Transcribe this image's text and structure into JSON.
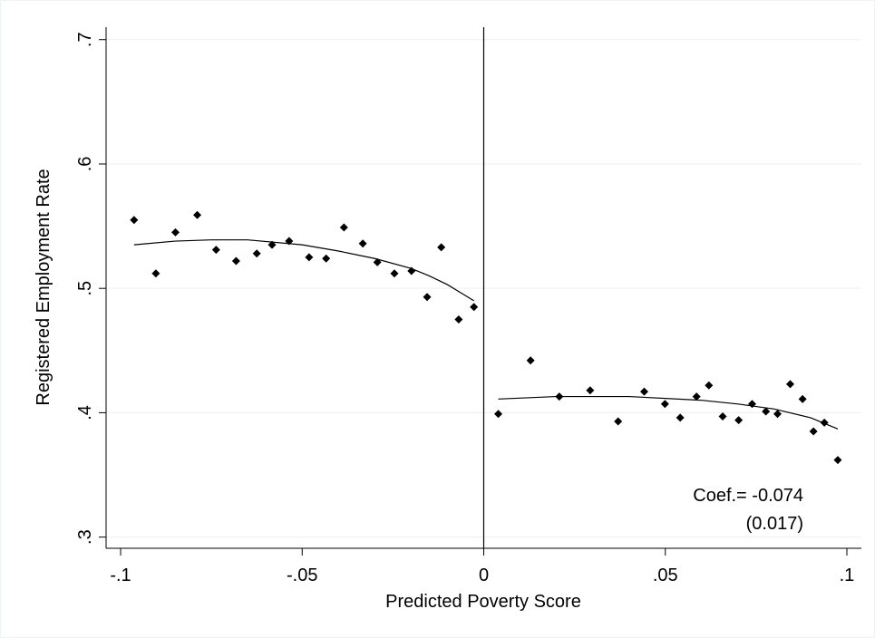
{
  "chart_data": {
    "type": "scatter",
    "xlabel": "Predicted Poverty Score",
    "ylabel": "Registered Employment Rate",
    "xlim": [
      -0.104,
      0.104
    ],
    "ylim": [
      0.291,
      0.71
    ],
    "xticks": [
      {
        "value": -0.1,
        "label": "-.1"
      },
      {
        "value": -0.05,
        "label": "-.05"
      },
      0,
      {
        "value": 0.05,
        "label": ".05"
      },
      {
        "value": 0.1,
        "label": ".1"
      }
    ],
    "yticks": [
      {
        "value": 0.3,
        "label": ".3"
      },
      {
        "value": 0.4,
        "label": ".4"
      },
      {
        "value": 0.5,
        "label": ".5"
      },
      {
        "value": 0.6,
        "label": ".6"
      },
      {
        "value": 0.7,
        "label": ".7"
      }
    ],
    "grid": true,
    "cutoff": 0,
    "annotations": [
      "Coef.= -0.074",
      "(0.017)"
    ],
    "series": [
      {
        "type": "scatter",
        "color": "#000000",
        "x": [
          -0.0963,
          -0.0903,
          -0.0849,
          -0.0789,
          -0.0737,
          -0.0682,
          -0.0625,
          -0.0583,
          -0.0536,
          -0.0481,
          -0.0434,
          -0.0385,
          -0.0333,
          -0.0293,
          -0.0246,
          -0.0199,
          -0.0156,
          -0.0117,
          -0.0069,
          -0.0027
        ],
        "values": [
          0.555,
          0.512,
          0.545,
          0.559,
          0.531,
          0.522,
          0.528,
          0.535,
          0.538,
          0.525,
          0.524,
          0.549,
          0.536,
          0.521,
          0.512,
          0.514,
          0.493,
          0.533,
          0.475,
          0.485
        ]
      },
      {
        "type": "scatter",
        "color": "#000000",
        "x": [
          0.004,
          0.0129,
          0.0208,
          0.0293,
          0.037,
          0.0442,
          0.0499,
          0.0541,
          0.0586,
          0.062,
          0.0658,
          0.0702,
          0.0739,
          0.0777,
          0.0809,
          0.0844,
          0.0878,
          0.0908,
          0.0938,
          0.0975
        ],
        "values": [
          0.399,
          0.442,
          0.413,
          0.418,
          0.393,
          0.417,
          0.407,
          0.396,
          0.413,
          0.422,
          0.397,
          0.394,
          0.407,
          0.401,
          0.399,
          0.423,
          0.411,
          0.385,
          0.392,
          0.362
        ]
      },
      {
        "type": "line",
        "color": "#000000",
        "x": [
          -0.0963,
          -0.085,
          -0.075,
          -0.065,
          -0.05,
          -0.04,
          -0.03,
          -0.02,
          -0.015,
          -0.01,
          -0.0027
        ],
        "values": [
          0.535,
          0.538,
          0.539,
          0.539,
          0.535,
          0.53,
          0.524,
          0.516,
          0.51,
          0.503,
          0.49
        ]
      },
      {
        "type": "line",
        "color": "#000000",
        "x": [
          0.004,
          0.02,
          0.04,
          0.06,
          0.07,
          0.08,
          0.09,
          0.0975
        ],
        "values": [
          0.411,
          0.413,
          0.413,
          0.41,
          0.407,
          0.403,
          0.396,
          0.387
        ]
      }
    ]
  }
}
